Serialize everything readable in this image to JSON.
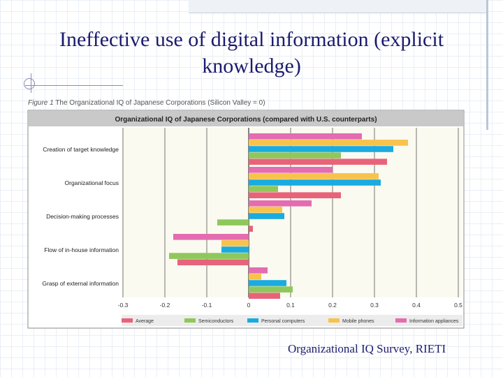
{
  "slide": {
    "title": "Ineffective use of digital information (explicit knowledge)",
    "figure_label": "Figure 1",
    "figure_caption": "The Organizational IQ of Japanese Corporations (Silicon Valley = 0)",
    "source": "Organizational IQ Survey, RIETI"
  },
  "colors": {
    "average": "#e8637a",
    "semiconductors": "#8ec85a",
    "personal_computers": "#1aabe0",
    "mobile_phones": "#f7c34a",
    "information_appliances": "#e46cb0"
  },
  "chart_data": {
    "type": "bar",
    "orientation": "horizontal",
    "title": "Organizational IQ of Japanese Corporations (compared with U.S. counterparts)",
    "categories": [
      "Creation of target knowledge",
      "Organizational focus",
      "Decision-making processes",
      "Flow of in-house information",
      "Grasp of external information"
    ],
    "series": [
      {
        "name": "Information appliances",
        "color": "#e46cb0",
        "values": [
          0.27,
          0.2,
          0.15,
          -0.18,
          0.045
        ]
      },
      {
        "name": "Mobile phones",
        "color": "#f7c34a",
        "values": [
          0.38,
          0.31,
          0.08,
          -0.065,
          0.03
        ]
      },
      {
        "name": "Personal computers",
        "color": "#1aabe0",
        "values": [
          0.345,
          0.315,
          0.085,
          -0.065,
          0.09
        ]
      },
      {
        "name": "Semiconductors",
        "color": "#8ec85a",
        "values": [
          0.22,
          0.07,
          -0.075,
          -0.19,
          0.105
        ]
      },
      {
        "name": "Average",
        "color": "#e8637a",
        "values": [
          0.33,
          0.22,
          0.01,
          -0.17,
          0.075
        ]
      }
    ],
    "xlim": [
      -0.3,
      0.5
    ],
    "xticks": [
      "-0.3",
      "-0.2",
      "-0.1",
      "0",
      "0.1",
      "0.2",
      "0.3",
      "0.4",
      "0.5"
    ],
    "legend": [
      "Average",
      "Semiconductors",
      "Personal computers",
      "Mobile phones",
      "Information appliances"
    ],
    "legend_position": "bottom",
    "grid": "vertical lines at each tick"
  }
}
